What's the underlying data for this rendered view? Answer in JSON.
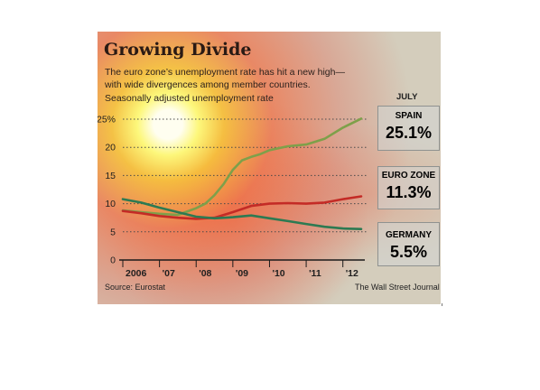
{
  "title": "Growing Divide",
  "subtitle_line1": "The euro zone’s unemployment rate has hit a new high—",
  "subtitle_line2": "with wide divergences among member countries.",
  "ylabel": "Seasonally adjusted unemployment rate",
  "latest_label": "JULY",
  "source": "Source: Eurostat",
  "publisher": "The Wall Street Journal",
  "colors": {
    "spain": "#7ea04a",
    "euro_zone": "#c42b26",
    "germany": "#2d7a52",
    "background": "#d4cdbc"
  },
  "chart_data": {
    "type": "line",
    "x_ticks": [
      "2006",
      "'07",
      "'08",
      "'09",
      "'10",
      "'11",
      "'12"
    ],
    "y_ticks": [
      "0",
      "5",
      "10",
      "15",
      "20",
      "25%"
    ],
    "y_tick_values": [
      0,
      5,
      10,
      15,
      20,
      25
    ],
    "ylim": [
      0,
      25
    ],
    "xlim": [
      "2006-01",
      "2012-07"
    ],
    "grid": "horizontal dotted",
    "series": [
      {
        "name": "SPAIN",
        "display_value": "25.1%",
        "color": "#7ea04a",
        "points": [
          [
            "2006-01",
            8.8
          ],
          [
            "2006-07",
            8.5
          ],
          [
            "2007-01",
            8.2
          ],
          [
            "2007-07",
            8.0
          ],
          [
            "2008-01",
            9.2
          ],
          [
            "2008-04",
            10.0
          ],
          [
            "2008-07",
            11.5
          ],
          [
            "2008-10",
            13.5
          ],
          [
            "2009-01",
            16.0
          ],
          [
            "2009-04",
            17.7
          ],
          [
            "2009-07",
            18.3
          ],
          [
            "2009-10",
            18.8
          ],
          [
            "2010-01",
            19.5
          ],
          [
            "2010-07",
            20.2
          ],
          [
            "2011-01",
            20.5
          ],
          [
            "2011-07",
            21.5
          ],
          [
            "2012-01",
            23.5
          ],
          [
            "2012-07",
            25.1
          ]
        ]
      },
      {
        "name": "EURO ZONE",
        "display_value": "11.3%",
        "color": "#c42b26",
        "points": [
          [
            "2006-01",
            8.7
          ],
          [
            "2006-07",
            8.3
          ],
          [
            "2007-01",
            7.8
          ],
          [
            "2007-07",
            7.5
          ],
          [
            "2008-01",
            7.3
          ],
          [
            "2008-07",
            7.5
          ],
          [
            "2009-01",
            8.5
          ],
          [
            "2009-07",
            9.6
          ],
          [
            "2010-01",
            10.0
          ],
          [
            "2010-07",
            10.1
          ],
          [
            "2011-01",
            10.0
          ],
          [
            "2011-07",
            10.2
          ],
          [
            "2012-01",
            10.8
          ],
          [
            "2012-07",
            11.3
          ]
        ]
      },
      {
        "name": "GERMANY",
        "display_value": "5.5%",
        "color": "#2d7a52",
        "points": [
          [
            "2006-01",
            10.8
          ],
          [
            "2006-07",
            10.2
          ],
          [
            "2007-01",
            9.3
          ],
          [
            "2007-07",
            8.5
          ],
          [
            "2008-01",
            7.7
          ],
          [
            "2008-07",
            7.4
          ],
          [
            "2009-01",
            7.6
          ],
          [
            "2009-07",
            7.9
          ],
          [
            "2010-01",
            7.4
          ],
          [
            "2010-07",
            6.9
          ],
          [
            "2011-01",
            6.4
          ],
          [
            "2011-07",
            5.9
          ],
          [
            "2012-01",
            5.6
          ],
          [
            "2012-07",
            5.5
          ]
        ]
      }
    ]
  }
}
